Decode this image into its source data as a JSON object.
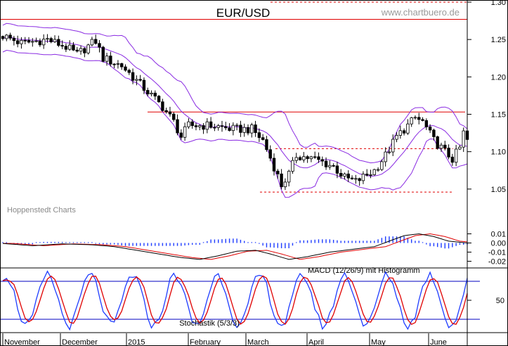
{
  "chart_data": {
    "type": "candlestick",
    "title": "EUR/USD",
    "watermark": "www.chartbuero.de",
    "source_label": "Hoppenstedt Charts",
    "colors": {
      "candle": "#000000",
      "bollinger": "#8a2be2",
      "level_line": "#e00000",
      "macd_line": "#000000",
      "signal_line": "#e00000",
      "histogram": "#1e3cff",
      "stoch_k": "#1e3cff",
      "stoch_d": "#e00000",
      "stoch_bound": "#0000c0",
      "grid": "#555555"
    },
    "x_months": [
      "November",
      "December",
      "2015",
      "February",
      "March",
      "April",
      "May",
      "June"
    ],
    "price": {
      "ylim": [
        1.0,
        1.3
      ],
      "ticks": [
        "1.30",
        "1.25",
        "1.20",
        "1.15",
        "1.10",
        "1.05"
      ],
      "tick_values": [
        1.3,
        1.25,
        1.2,
        1.15,
        1.1,
        1.05
      ],
      "anchors": [
        {
          "t": 0,
          "c": 1.255
        },
        {
          "t": 5,
          "c": 1.245
        },
        {
          "t": 12,
          "c": 1.25
        },
        {
          "t": 17,
          "c": 1.24
        },
        {
          "t": 20,
          "c": 1.23
        },
        {
          "t": 24,
          "c": 1.245
        },
        {
          "t": 25,
          "c": 1.248
        },
        {
          "t": 27,
          "c": 1.225
        },
        {
          "t": 32,
          "c": 1.215
        },
        {
          "t": 36,
          "c": 1.195
        },
        {
          "t": 40,
          "c": 1.175
        },
        {
          "t": 43,
          "c": 1.16
        },
        {
          "t": 46,
          "c": 1.14
        },
        {
          "t": 48,
          "c": 1.12
        },
        {
          "t": 50,
          "c": 1.135
        },
        {
          "t": 56,
          "c": 1.135
        },
        {
          "t": 62,
          "c": 1.13
        },
        {
          "t": 67,
          "c": 1.13
        },
        {
          "t": 70,
          "c": 1.115
        },
        {
          "t": 73,
          "c": 1.08
        },
        {
          "t": 75,
          "c": 1.055
        },
        {
          "t": 77,
          "c": 1.07
        },
        {
          "t": 79,
          "c": 1.095
        },
        {
          "t": 84,
          "c": 1.09
        },
        {
          "t": 89,
          "c": 1.08
        },
        {
          "t": 92,
          "c": 1.065
        },
        {
          "t": 95,
          "c": 1.06
        },
        {
          "t": 100,
          "c": 1.075
        },
        {
          "t": 103,
          "c": 1.095
        },
        {
          "t": 106,
          "c": 1.12
        },
        {
          "t": 109,
          "c": 1.135
        },
        {
          "t": 111,
          "c": 1.145
        },
        {
          "t": 113,
          "c": 1.14
        },
        {
          "t": 116,
          "c": 1.115
        },
        {
          "t": 119,
          "c": 1.1
        },
        {
          "t": 121,
          "c": 1.09
        },
        {
          "t": 123,
          "c": 1.105
        },
        {
          "t": 124,
          "c": 1.125
        },
        {
          "t": 125,
          "c": 1.115
        }
      ],
      "levels": [
        {
          "value": 1.277,
          "style": "solid"
        },
        {
          "value": 1.153,
          "style": "solid"
        },
        {
          "value": 1.104,
          "style": "dashed"
        },
        {
          "value": 1.046,
          "style": "dashed"
        },
        {
          "value": 1.3,
          "style": "dashed"
        }
      ]
    },
    "macd": {
      "label": "MACD (12/26/9) mit Histogramm",
      "ylim": [
        -0.025,
        0.015
      ],
      "ticks": [
        "0.01",
        "0.00",
        "-0.01",
        "-0.02"
      ],
      "tick_values": [
        0.01,
        0.0,
        -0.01,
        -0.02
      ],
      "anchors": [
        {
          "t": 0,
          "v": -0.0005
        },
        {
          "t": 8,
          "v": -0.003
        },
        {
          "t": 16,
          "v": -0.001
        },
        {
          "t": 24,
          "v": -0.002
        },
        {
          "t": 30,
          "v": -0.004
        },
        {
          "t": 36,
          "v": -0.008
        },
        {
          "t": 42,
          "v": -0.012
        },
        {
          "t": 48,
          "v": -0.016
        },
        {
          "t": 53,
          "v": -0.018
        },
        {
          "t": 58,
          "v": -0.014
        },
        {
          "t": 63,
          "v": -0.009
        },
        {
          "t": 68,
          "v": -0.008
        },
        {
          "t": 72,
          "v": -0.012
        },
        {
          "t": 77,
          "v": -0.018
        },
        {
          "t": 82,
          "v": -0.015
        },
        {
          "t": 88,
          "v": -0.01
        },
        {
          "t": 94,
          "v": -0.007
        },
        {
          "t": 100,
          "v": -0.004
        },
        {
          "t": 104,
          "v": 0.002
        },
        {
          "t": 108,
          "v": 0.008
        },
        {
          "t": 112,
          "v": 0.01
        },
        {
          "t": 116,
          "v": 0.007
        },
        {
          "t": 120,
          "v": 0.002
        },
        {
          "t": 125,
          "v": 0.0
        }
      ]
    },
    "stochastic": {
      "label": "Stochastik (5/3/3)",
      "ylim": [
        0,
        100
      ],
      "ticks": [
        "50"
      ],
      "tick_values": [
        50
      ],
      "bounds": [
        80,
        20
      ]
    }
  }
}
